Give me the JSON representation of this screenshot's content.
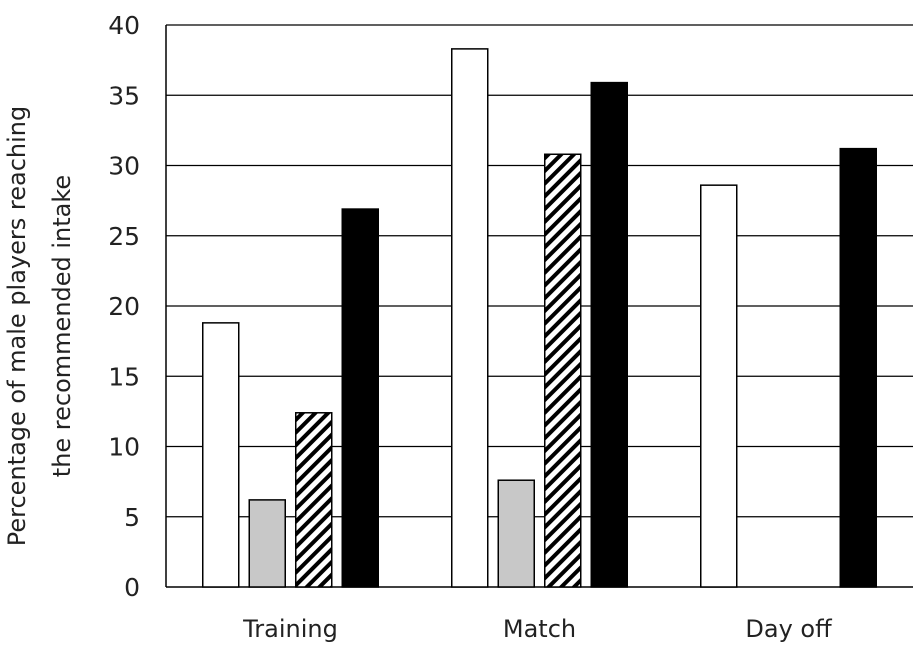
{
  "chart_data": {
    "type": "bar",
    "categories": [
      "Training",
      "Match",
      "Day off"
    ],
    "series": [
      {
        "values": [
          18.8,
          38.3,
          28.6
        ],
        "fill": "#ffffff",
        "pattern": "none"
      },
      {
        "values": [
          6.2,
          7.6,
          0
        ],
        "fill": "#c8c8c8",
        "pattern": "none"
      },
      {
        "values": [
          12.4,
          30.8,
          0
        ],
        "fill": "#ffffff",
        "pattern": "diagonal-hatch"
      },
      {
        "values": [
          26.9,
          35.9,
          31.2
        ],
        "fill": "#000000",
        "pattern": "none"
      }
    ],
    "ylim": [
      0,
      40
    ],
    "yticks": [
      0,
      5,
      10,
      15,
      20,
      25,
      30,
      35,
      40
    ],
    "ylabel_lines": [
      "Percentage of male players reaching",
      "the recommended intake"
    ],
    "xlabel": "",
    "grid": true,
    "legend": "none"
  }
}
